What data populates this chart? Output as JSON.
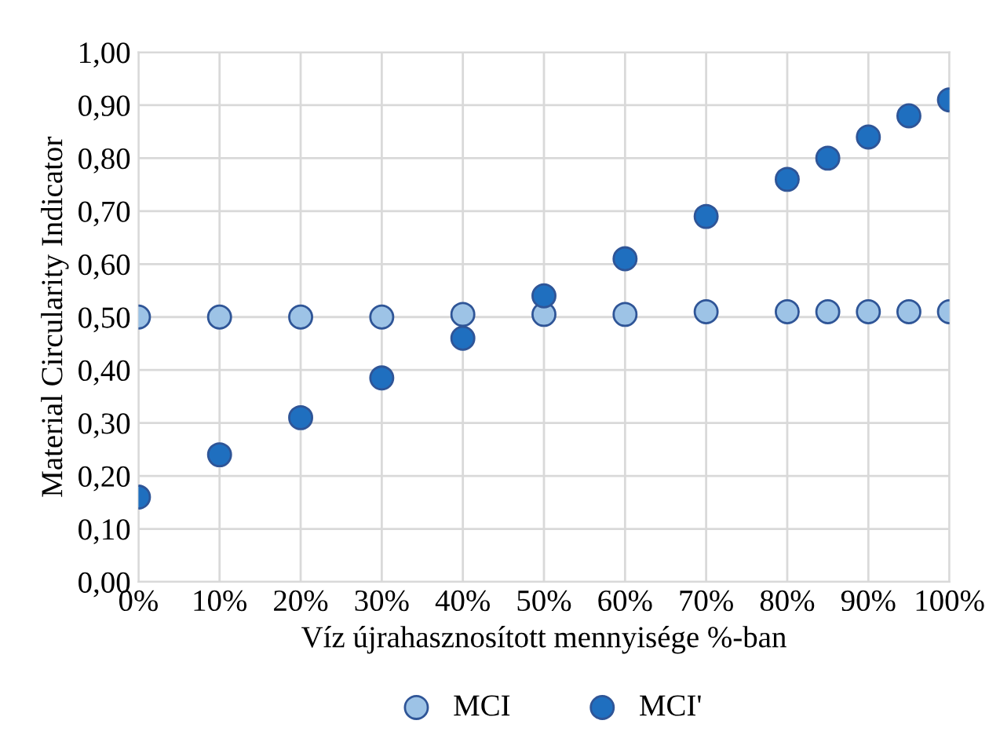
{
  "chart_data": {
    "type": "scatter",
    "xlabel": "Víz újrahasznosított mennyisége %-ban",
    "ylabel": "Material Circularity Indicator",
    "x": [
      0,
      10,
      20,
      30,
      40,
      50,
      60,
      70,
      80,
      85,
      90,
      95,
      100
    ],
    "series": [
      {
        "name": "MCI",
        "color": "#9dc3e6",
        "values": [
          0.5,
          0.5,
          0.5,
          0.5,
          0.505,
          0.505,
          0.505,
          0.51,
          0.51,
          0.51,
          0.51,
          0.51,
          0.51
        ]
      },
      {
        "name": "MCI'",
        "color": "#1f6fbf",
        "values": [
          0.16,
          0.24,
          0.31,
          0.385,
          0.46,
          0.54,
          0.61,
          0.69,
          0.76,
          0.8,
          0.84,
          0.88,
          0.91
        ]
      }
    ],
    "xlim": [
      0,
      100
    ],
    "xticks": [
      {
        "value": 0,
        "label": "0%"
      },
      {
        "value": 10,
        "label": "10%"
      },
      {
        "value": 20,
        "label": "20%"
      },
      {
        "value": 30,
        "label": "30%"
      },
      {
        "value": 40,
        "label": "40%"
      },
      {
        "value": 50,
        "label": "50%"
      },
      {
        "value": 60,
        "label": "60%"
      },
      {
        "value": 70,
        "label": "70%"
      },
      {
        "value": 80,
        "label": "80%"
      },
      {
        "value": 90,
        "label": "90%"
      },
      {
        "value": 100,
        "label": "100%"
      }
    ],
    "ylim": [
      0,
      1
    ],
    "yticks": [
      {
        "value": 0,
        "label": "0,00"
      },
      {
        "value": 0.1,
        "label": "0,10"
      },
      {
        "value": 0.2,
        "label": "0,20"
      },
      {
        "value": 0.3,
        "label": "0,30"
      },
      {
        "value": 0.4,
        "label": "0,40"
      },
      {
        "value": 0.5,
        "label": "0,50"
      },
      {
        "value": 0.6,
        "label": "0,60"
      },
      {
        "value": 0.7,
        "label": "0,70"
      },
      {
        "value": 0.8,
        "label": "0,80"
      },
      {
        "value": 0.9,
        "label": "0,90"
      },
      {
        "value": 1.0,
        "label": "1,00"
      }
    ],
    "grid": true,
    "legend": "bottom",
    "marker": "circle"
  }
}
